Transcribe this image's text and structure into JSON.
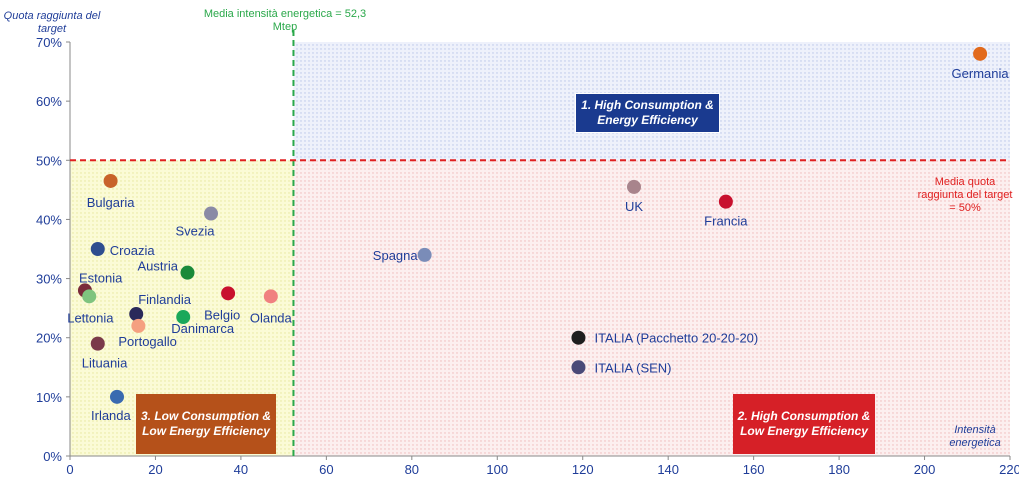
{
  "chart_data": {
    "type": "scatter",
    "ylabel": "Quota raggiunta del target",
    "xlabel": "Intensità energetica",
    "xlim": [
      0,
      220
    ],
    "ylim": [
      0,
      70
    ],
    "x_ticks": [
      "0",
      "20",
      "40",
      "60",
      "80",
      "100",
      "120",
      "140",
      "160",
      "180",
      "200",
      "220"
    ],
    "y_ticks": [
      "0%",
      "10%",
      "20%",
      "30%",
      "40%",
      "50%",
      "60%",
      "70%"
    ],
    "vline": {
      "x": 52.3,
      "label": "Media  intensità energetica = 52,3 Mtep",
      "color": "#2aa84a"
    },
    "hline": {
      "y": 50,
      "label": "Media quota raggiunta del target = 50%",
      "color": "#e02020"
    },
    "quadrants": [
      {
        "label": "1. High Consumption & Energy Efficiency",
        "color": "#1a3a8f"
      },
      {
        "label": "2. High Consumption &  Low Energy Efficiency",
        "color": "#d62027"
      },
      {
        "label": "3. Low Consumption &  Low Energy Efficiency",
        "color": "#b5511a"
      }
    ],
    "points": [
      {
        "name": "Germania",
        "x": 213,
        "y": 68,
        "color": "#e26a1c"
      },
      {
        "name": "UK",
        "x": 132,
        "y": 45.5,
        "color": "#a8848c"
      },
      {
        "name": "Francia",
        "x": 153.5,
        "y": 43,
        "color": "#c8102e"
      },
      {
        "name": "Spagna",
        "x": 83,
        "y": 34,
        "color": "#7a8cb8"
      },
      {
        "name": "ITALIA (Pacchetto 20-20-20)",
        "x": 119,
        "y": 20,
        "color": "#1e1e1e"
      },
      {
        "name": "ITALIA (SEN)",
        "x": 119,
        "y": 15,
        "color": "#4a4a78"
      },
      {
        "name": "Bulgaria",
        "x": 9.5,
        "y": 46.5,
        "color": "#c8622a"
      },
      {
        "name": "Svezia",
        "x": 33,
        "y": 41,
        "color": "#8a8aa6"
      },
      {
        "name": "Croazia",
        "x": 6.5,
        "y": 35,
        "color": "#2e4d8f"
      },
      {
        "name": "Estonia",
        "x": 3.5,
        "y": 28,
        "color": "#7a2a3a"
      },
      {
        "name": "Austria",
        "x": 27.5,
        "y": 31,
        "color": "#1a8a3a"
      },
      {
        "name": "Lettonia",
        "x": 4.5,
        "y": 27,
        "color": "#7fc47f"
      },
      {
        "name": "Finlandia",
        "x": 15.5,
        "y": 24,
        "color": "#2a2a5a"
      },
      {
        "name": "Belgio",
        "x": 37,
        "y": 27.5,
        "color": "#c8102e"
      },
      {
        "name": "Olanda",
        "x": 47,
        "y": 27,
        "color": "#f08080"
      },
      {
        "name": "Danimarca",
        "x": 26.5,
        "y": 23.5,
        "color": "#1aa85a"
      },
      {
        "name": "Portogallo",
        "x": 16,
        "y": 22,
        "color": "#f5a080"
      },
      {
        "name": "Lituania",
        "x": 6.5,
        "y": 19,
        "color": "#7a3a4a"
      },
      {
        "name": "Irlanda",
        "x": 11,
        "y": 10,
        "color": "#3a6ab0"
      }
    ]
  }
}
